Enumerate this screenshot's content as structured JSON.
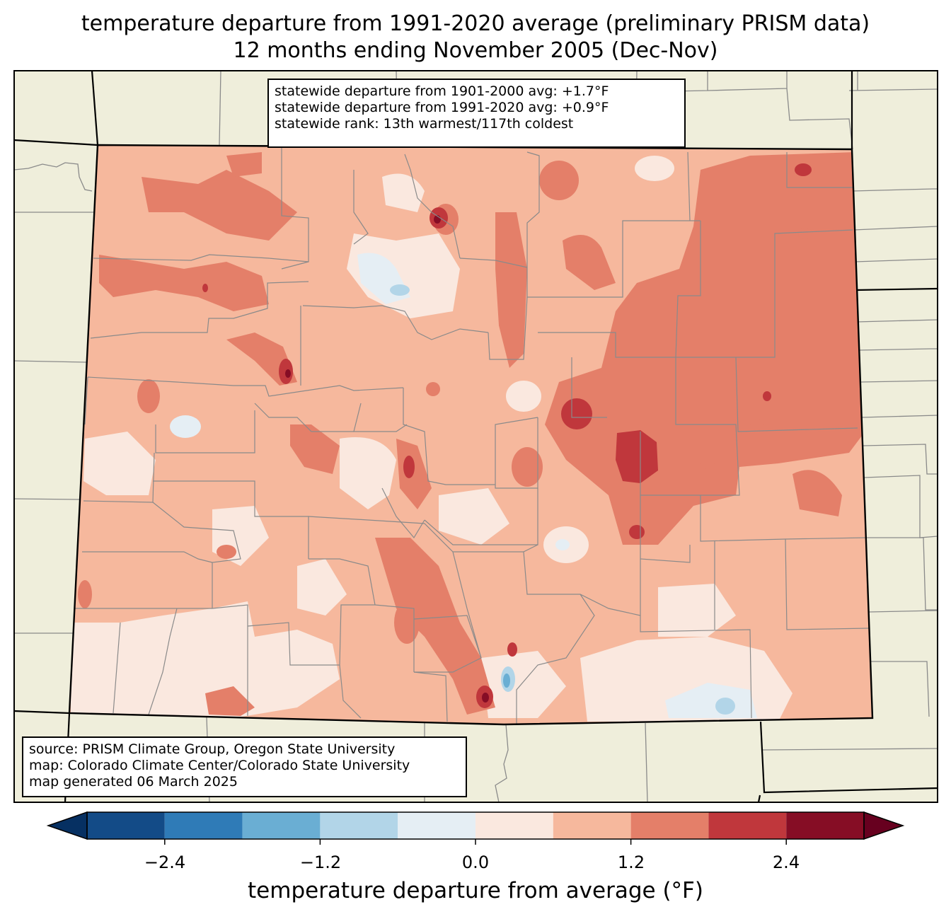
{
  "title": {
    "line1": "temperature departure from 1991-2020 average (preliminary PRISM data)",
    "line2": "12 months ending November 2005 (Dec-Nov)"
  },
  "stats": {
    "line1": "statewide departure from 1901-2000 avg: +1.7°F",
    "line2": "statewide departure from 1991-2020 avg: +0.9°F",
    "line3": "statewide rank: 13th warmest/117th coldest"
  },
  "source": {
    "line1": "source: PRISM Climate Group, Oregon State University",
    "line2": "map: Colorado Climate Center/Colorado State University",
    "line3": "map generated 06 March 2025"
  },
  "colorbar": {
    "label": "temperature departure from average (°F)",
    "ticks": [
      "−2.4",
      "−1.2",
      "0.0",
      "1.2",
      "2.4"
    ],
    "bins": [
      {
        "from": -3.0,
        "to": -2.4,
        "color": "#134b87"
      },
      {
        "from": -2.4,
        "to": -1.8,
        "color": "#2f7bb7"
      },
      {
        "from": -1.8,
        "to": -1.2,
        "color": "#6aaed3"
      },
      {
        "from": -1.2,
        "to": -0.6,
        "color": "#b2d5e8"
      },
      {
        "from": -0.6,
        "to": 0.0,
        "color": "#e5eef4"
      },
      {
        "from": 0.0,
        "to": 0.6,
        "color": "#fae8df"
      },
      {
        "from": 0.6,
        "to": 1.2,
        "color": "#f6b89d"
      },
      {
        "from": 1.2,
        "to": 1.8,
        "color": "#e47f69"
      },
      {
        "from": 1.8,
        "to": 2.4,
        "color": "#c0373c"
      },
      {
        "from": 2.4,
        "to": 3.0,
        "color": "#860d25"
      }
    ],
    "under_color": "#063062",
    "over_color": "#67001f"
  },
  "map": {
    "land_color": "#efeedb",
    "state_name": "Colorado"
  }
}
